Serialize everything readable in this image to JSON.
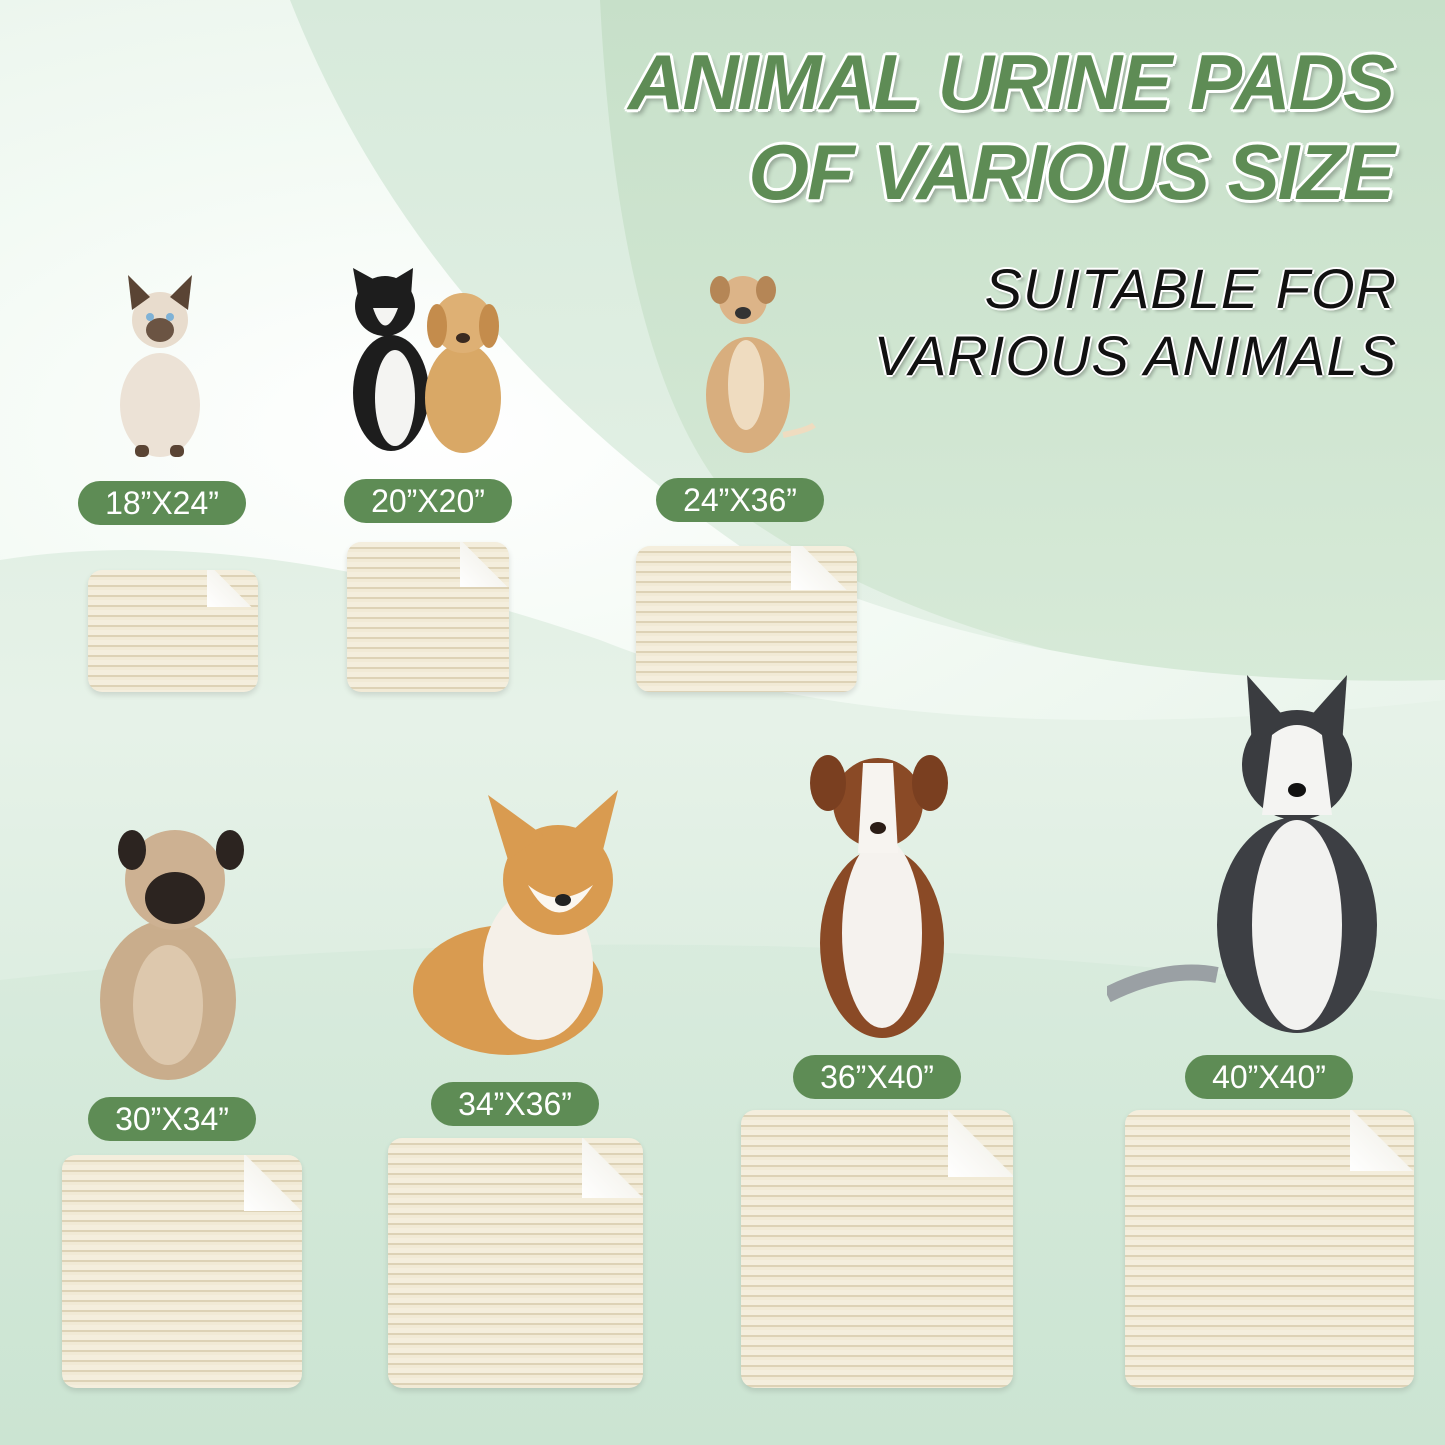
{
  "headline": {
    "line1": "ANIMAL URINE PADS",
    "line2": "OF VARIOUS SIZE"
  },
  "subheadline": {
    "line1": "SUITABLE FOR",
    "line2": "VARIOUS ANIMALS"
  },
  "colors": {
    "accent": "#5e8c55",
    "pad": "#efe7d2",
    "background": "#dbeddf"
  },
  "sizes": [
    {
      "label": "18”X24”",
      "animal": "siamese-cat"
    },
    {
      "label": "20”X20”",
      "animal": "cat-and-puppy"
    },
    {
      "label": "24”X36”",
      "animal": "tan-dog"
    },
    {
      "label": "30”X34”",
      "animal": "pug"
    },
    {
      "label": "34”X36”",
      "animal": "corgi"
    },
    {
      "label": "36”X40”",
      "animal": "australian-shepherd"
    },
    {
      "label": "40”X40”",
      "animal": "husky"
    }
  ]
}
